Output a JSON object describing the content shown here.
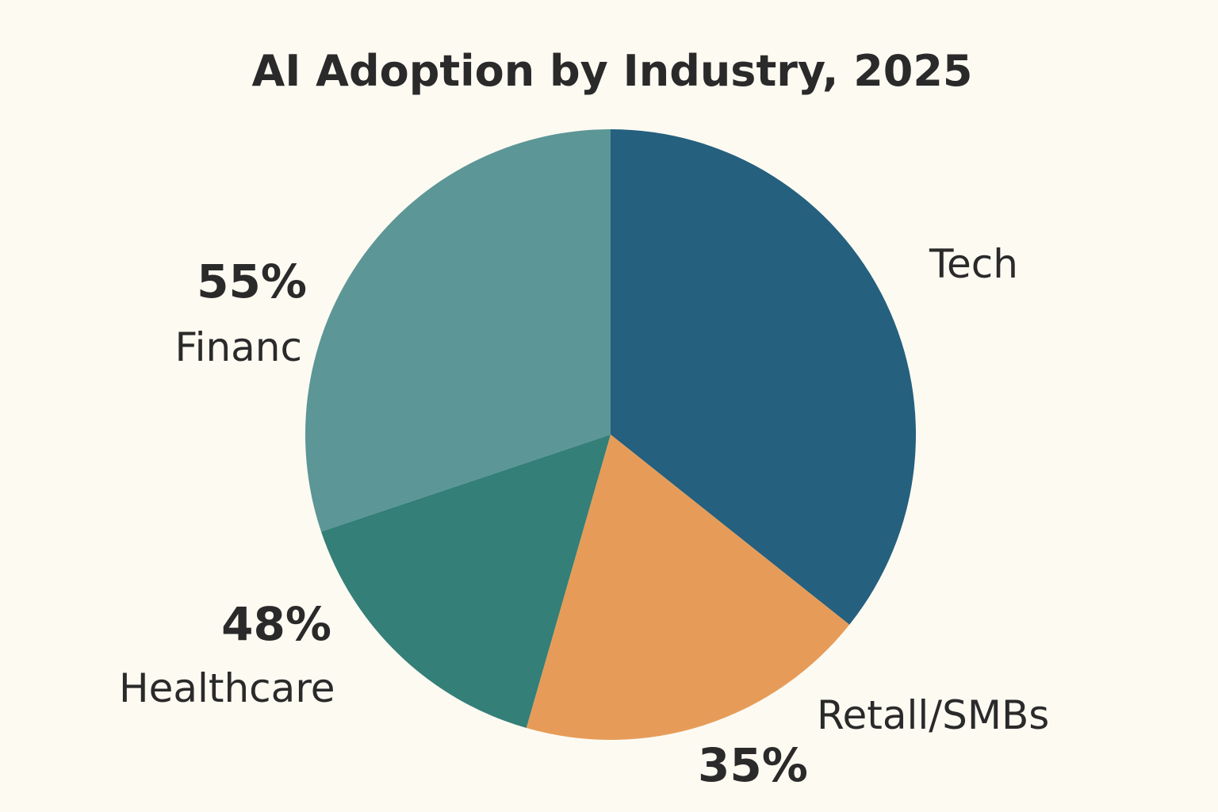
{
  "chart_data": {
    "type": "pie",
    "title": "AI Adoption by Industry, 2025",
    "start_angle_deg": 0,
    "direction": "clockwise",
    "slices": [
      {
        "label": "Tech",
        "value_label": "",
        "share": 0.357,
        "color": "#25607e"
      },
      {
        "label": "Retall/SMBs",
        "value_label": "35%",
        "share": 0.1875,
        "color": "#e69c58"
      },
      {
        "label": "Healthcare",
        "value_label": "48%",
        "share": 0.154,
        "color": "#347f78"
      },
      {
        "label": "Financ",
        "value_label": "55%",
        "share": 0.3015,
        "color": "#5c9696"
      }
    ],
    "legend": "none"
  }
}
